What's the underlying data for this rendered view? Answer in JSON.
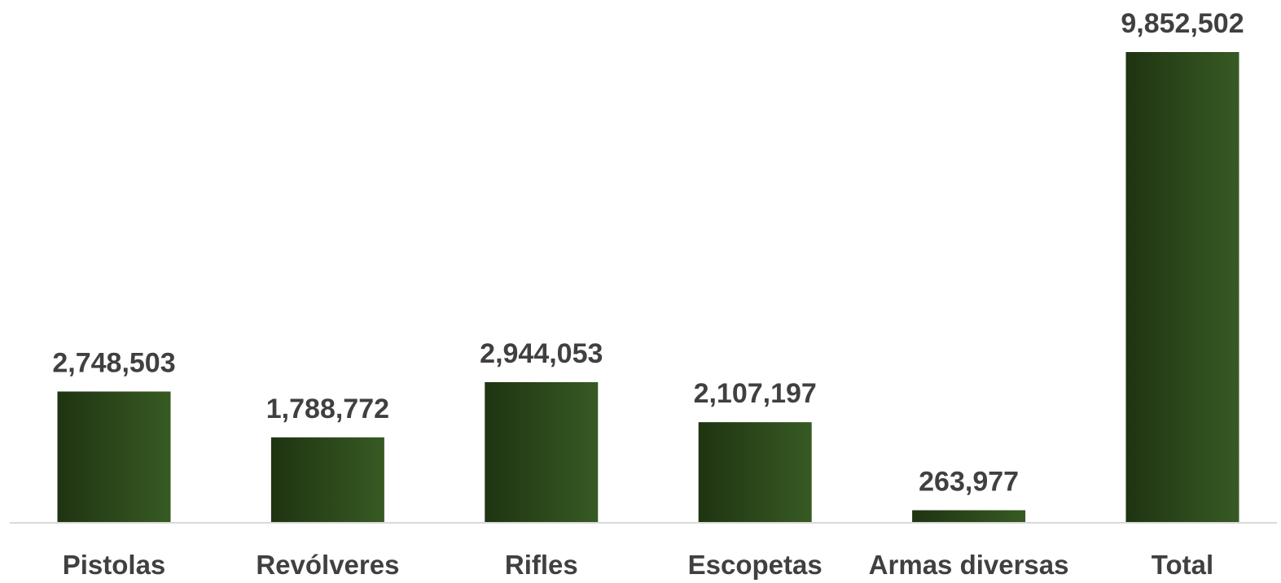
{
  "chart_data": {
    "type": "bar",
    "categories": [
      "Pistolas",
      "Revólveres",
      "Rifles",
      "Escopetas",
      "Armas diversas",
      "Total"
    ],
    "values": [
      2748503,
      1788772,
      2944053,
      2107197,
      263977,
      9852502
    ],
    "value_labels": [
      "2,748,503",
      "1,788,772",
      "2,944,053",
      "2,107,197",
      "263,977",
      "9,852,502"
    ],
    "title": "",
    "xlabel": "",
    "ylabel": "",
    "ylim": [
      0,
      9852502
    ],
    "grid": false,
    "legend": "none",
    "bar_color_start": "#1f3412",
    "bar_color_end": "#375a23",
    "axis_color": "#d9d9d9",
    "label_color": "#404040"
  }
}
